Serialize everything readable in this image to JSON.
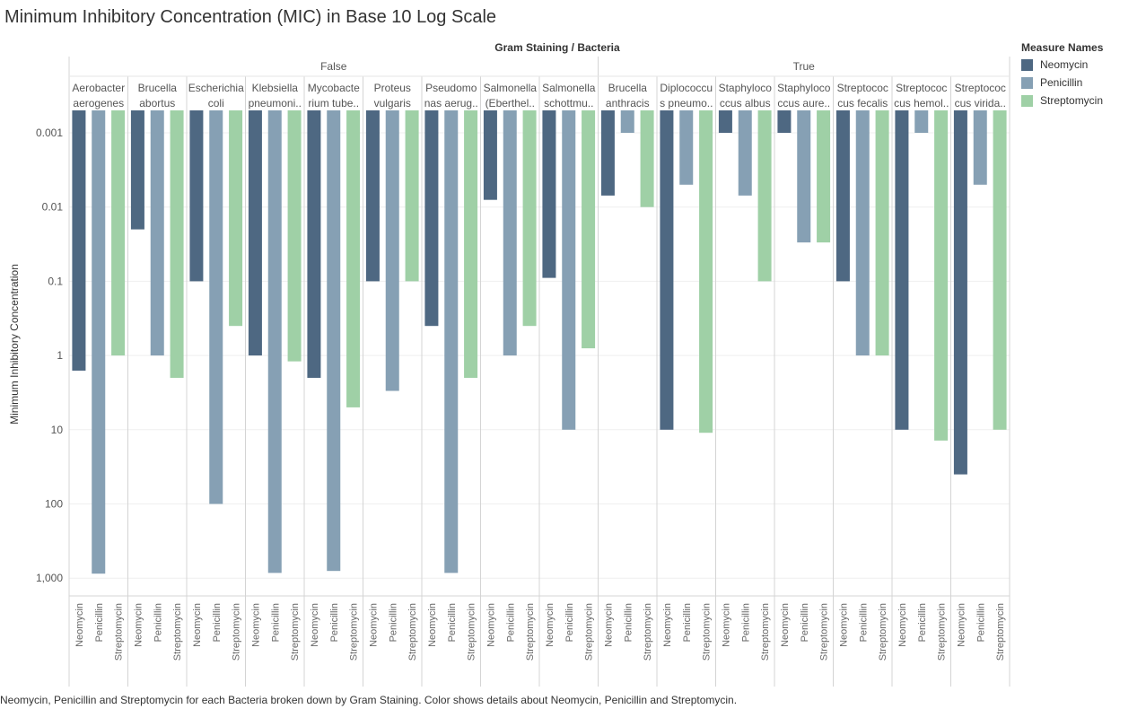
{
  "title": "Minimum Inhibitory Concentration (MIC) in Base 10 Log Scale",
  "caption": "Neomycin, Penicillin and Streptomycin for each Bacteria broken down by Gram Staining.  Color shows details about Neomycin, Penicillin and Streptomycin.",
  "legend": {
    "title": "Measure Names",
    "items": [
      {
        "label": "Neomycin",
        "color": "#4e6882"
      },
      {
        "label": "Penicillin",
        "color": "#86a0b4"
      },
      {
        "label": "Streptomycin",
        "color": "#9fd0a6"
      }
    ]
  },
  "chart_data": {
    "type": "bar",
    "title": "Minimum Inhibitory Concentration (MIC) in Base 10 Log Scale",
    "column_header": "Gram Staining  /  Bacteria",
    "ylabel": "Minimum Inhibitory Concentration",
    "y_scale": "log10",
    "y_reversed": true,
    "ylim": [
      0.0005,
      1500
    ],
    "y_ticks": [
      {
        "value": 0.001,
        "label": "0.001"
      },
      {
        "value": 0.01,
        "label": "0.01"
      },
      {
        "value": 0.1,
        "label": "0.1"
      },
      {
        "value": 1,
        "label": "1"
      },
      {
        "value": 10,
        "label": "10"
      },
      {
        "value": 100,
        "label": "100"
      },
      {
        "value": 1000,
        "label": "1,000"
      }
    ],
    "gridlines": true,
    "legend_position": "right",
    "measures": [
      "Neomycin",
      "Penicillin",
      "Streptomycin"
    ],
    "groups": [
      {
        "label": "False",
        "bacteria": [
          {
            "name": [
              "Aerobacter",
              "aerogenes"
            ],
            "values": [
              1.6,
              870,
              1
            ]
          },
          {
            "name": [
              "Brucella",
              "abortus"
            ],
            "values": [
              0.02,
              1,
              2
            ]
          },
          {
            "name": [
              "Escherichia",
              "coli"
            ],
            "values": [
              0.1,
              100,
              0.4
            ]
          },
          {
            "name": [
              "Klebsiella",
              "pneumoni.."
            ],
            "values": [
              1,
              850,
              1.2
            ]
          },
          {
            "name": [
              "Mycobacte",
              "rium tube.."
            ],
            "values": [
              2,
              800,
              5
            ]
          },
          {
            "name": [
              "Proteus",
              "vulgaris"
            ],
            "values": [
              0.1,
              3,
              0.1
            ]
          },
          {
            "name": [
              "Pseudomo",
              "nas aerug.."
            ],
            "values": [
              0.4,
              850,
              2
            ]
          },
          {
            "name": [
              "Salmonella",
              "(Eberthel.."
            ],
            "values": [
              0.008,
              1,
              0.4
            ]
          },
          {
            "name": [
              "Salmonella",
              "schottmu.."
            ],
            "values": [
              0.09,
              10,
              0.8
            ]
          }
        ]
      },
      {
        "label": "True",
        "bacteria": [
          {
            "name": [
              "Brucella",
              "anthracis"
            ],
            "values": [
              0.007,
              0.001,
              0.01
            ]
          },
          {
            "name": [
              "Diplococcu",
              "s pneumo.."
            ],
            "values": [
              10,
              0.005,
              11
            ]
          },
          {
            "name": [
              "Staphyloco",
              "ccus albus"
            ],
            "values": [
              0.001,
              0.007,
              0.1
            ]
          },
          {
            "name": [
              "Staphyloco",
              "ccus aure.."
            ],
            "values": [
              0.001,
              0.03,
              0.03
            ]
          },
          {
            "name": [
              "Streptococ",
              "cus fecalis"
            ],
            "values": [
              0.1,
              1,
              1
            ]
          },
          {
            "name": [
              "Streptococ",
              "cus hemol.."
            ],
            "values": [
              10,
              0.001,
              14
            ]
          },
          {
            "name": [
              "Streptococ",
              "cus virida.."
            ],
            "values": [
              40,
              0.005,
              10
            ]
          }
        ]
      }
    ]
  }
}
